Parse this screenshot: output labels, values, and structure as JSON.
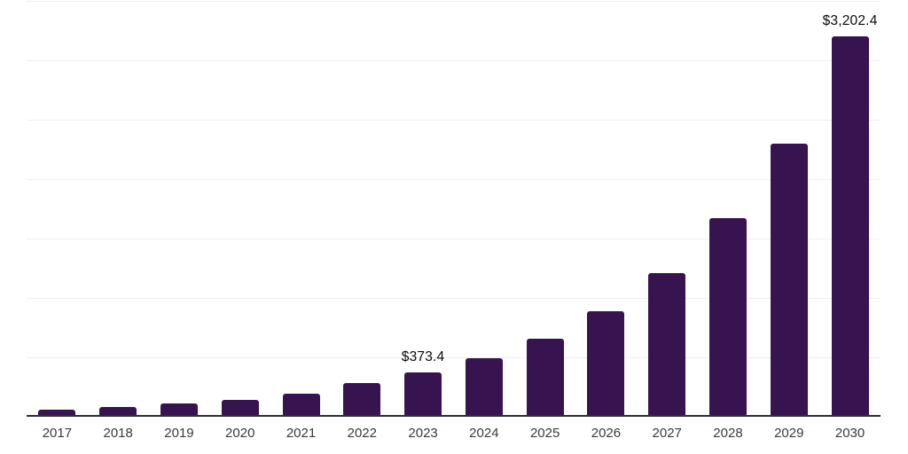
{
  "chart_data": {
    "type": "bar",
    "title": "",
    "xlabel": "",
    "ylabel": "",
    "categories": [
      "2017",
      "2018",
      "2019",
      "2020",
      "2021",
      "2022",
      "2023",
      "2024",
      "2025",
      "2026",
      "2027",
      "2028",
      "2029",
      "2030"
    ],
    "values": [
      58,
      80,
      115,
      145,
      193,
      280,
      373.4,
      495,
      655,
      890,
      1210,
      1670,
      2300,
      3202.4
    ],
    "data_labels": {
      "2023": "$373.4",
      "2030": "$3,202.4"
    },
    "ylim": [
      0,
      3500
    ],
    "gridline_interval": 500,
    "grid": "horizontal",
    "legend": "none",
    "y_axis_labels_visible": false,
    "colors": {
      "bar": "#371450",
      "axis_line": "#2e2e2e",
      "gridline": "#f0f0f0",
      "data_label": "#0a0a0a",
      "tick_label": "#3a3a3a",
      "background": "#ffffff"
    }
  }
}
